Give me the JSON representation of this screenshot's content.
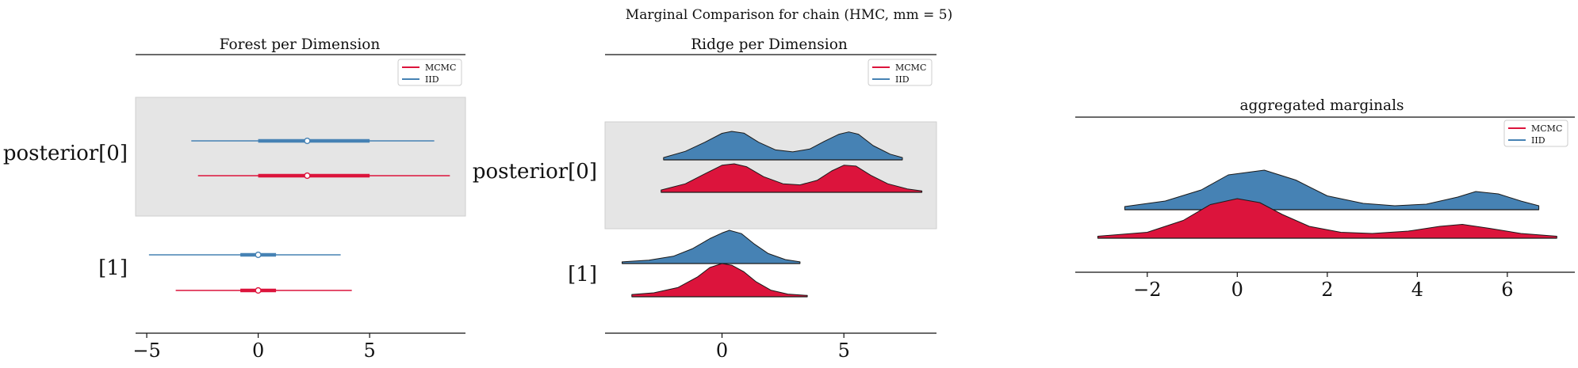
{
  "figure": {
    "suptitle": "Marginal Comparison for chain (HMC, mm = 5)"
  },
  "colors": {
    "MCMC": "#dc143c",
    "IID": "#4682b4",
    "band": "#e5e5e5",
    "outline": "#1a1a1a"
  },
  "chart_data": [
    {
      "type": "forest",
      "title": "Forest per Dimension",
      "legend": {
        "placement": "top-right",
        "entries": [
          "MCMC",
          "IID"
        ]
      },
      "xlim": [
        -5.5,
        9.3
      ],
      "xticks": [
        -5,
        0,
        5
      ],
      "xticklabels": [
        "−5",
        "0",
        "5"
      ],
      "rows": [
        {
          "label": "posterior[0]",
          "shaded": true,
          "series": [
            {
              "name": "IID",
              "hdi94": [
                -3.0,
                7.9
              ],
              "hdi50": [
                0.0,
                5.0
              ],
              "median": 2.2
            },
            {
              "name": "MCMC",
              "hdi94": [
                -2.7,
                8.6
              ],
              "hdi50": [
                0.0,
                5.0
              ],
              "median": 2.2
            }
          ]
        },
        {
          "label": "[1]",
          "shaded": false,
          "series": [
            {
              "name": "IID",
              "hdi94": [
                -4.9,
                3.7
              ],
              "hdi50": [
                -0.8,
                0.8
              ],
              "median": 0.0
            },
            {
              "name": "MCMC",
              "hdi94": [
                -3.7,
                4.2
              ],
              "hdi50": [
                -0.8,
                0.8
              ],
              "median": 0.0
            }
          ]
        }
      ]
    },
    {
      "type": "ridge",
      "title": "Ridge per Dimension",
      "legend": {
        "placement": "top-right",
        "entries": [
          "MCMC",
          "IID"
        ]
      },
      "xlim": [
        -4.8,
        8.8
      ],
      "xticks": [
        0,
        5
      ],
      "xticklabels": [
        "0",
        "5"
      ],
      "rows": [
        {
          "label": "posterior[0]",
          "shaded": true,
          "series": [
            {
              "name": "IID",
              "x": [
                -2.4,
                -1.5,
                -0.7,
                0.0,
                0.4,
                0.9,
                1.5,
                2.2,
                2.9,
                3.6,
                4.2,
                4.8,
                5.2,
                5.6,
                6.2,
                6.9,
                7.4
              ],
              "y": [
                0.08,
                0.3,
                0.62,
                0.93,
                1.0,
                0.94,
                0.62,
                0.35,
                0.28,
                0.38,
                0.65,
                0.9,
                0.98,
                0.9,
                0.5,
                0.2,
                0.08
              ]
            },
            {
              "name": "MCMC",
              "x": [
                -2.5,
                -1.5,
                -0.7,
                0.0,
                0.5,
                1.0,
                1.7,
                2.5,
                3.2,
                3.9,
                4.5,
                5.0,
                5.5,
                6.1,
                6.8,
                7.6,
                8.2
              ],
              "y": [
                0.08,
                0.3,
                0.65,
                0.95,
                1.0,
                0.9,
                0.55,
                0.3,
                0.26,
                0.42,
                0.75,
                0.95,
                0.92,
                0.6,
                0.3,
                0.12,
                0.05
              ]
            }
          ]
        },
        {
          "label": "[1]",
          "shaded": false,
          "series": [
            {
              "name": "IID",
              "x": [
                -4.1,
                -3.0,
                -2.0,
                -1.2,
                -0.5,
                0.0,
                0.3,
                0.8,
                1.3,
                1.9,
                2.6,
                3.2
              ],
              "y": [
                0.05,
                0.1,
                0.22,
                0.45,
                0.75,
                0.92,
                1.0,
                0.9,
                0.6,
                0.3,
                0.12,
                0.05
              ]
            },
            {
              "name": "MCMC",
              "x": [
                -3.7,
                -2.8,
                -1.8,
                -1.0,
                -0.5,
                0.0,
                0.4,
                0.9,
                1.4,
                2.0,
                2.7,
                3.5
              ],
              "y": [
                0.07,
                0.12,
                0.28,
                0.6,
                0.88,
                1.0,
                0.95,
                0.75,
                0.45,
                0.2,
                0.08,
                0.04
              ]
            }
          ]
        }
      ]
    },
    {
      "type": "ridge",
      "title": "aggregated marginals",
      "legend": {
        "placement": "top-right",
        "entries": [
          "MCMC",
          "IID"
        ]
      },
      "xlim": [
        -3.6,
        7.5
      ],
      "xticks": [
        -2,
        0,
        2,
        4,
        6
      ],
      "xticklabels": [
        "−2",
        "0",
        "2",
        "4",
        "6"
      ],
      "rows": [
        {
          "label": "",
          "shaded": false,
          "series": [
            {
              "name": "IID",
              "x": [
                -2.5,
                -1.6,
                -0.8,
                -0.2,
                0.6,
                1.3,
                2.0,
                2.8,
                3.5,
                4.2,
                4.9,
                5.3,
                5.8,
                6.3,
                6.7
              ],
              "y": [
                0.08,
                0.22,
                0.5,
                0.88,
                1.0,
                0.75,
                0.35,
                0.16,
                0.1,
                0.14,
                0.32,
                0.46,
                0.4,
                0.22,
                0.1
              ]
            },
            {
              "name": "MCMC",
              "x": [
                -3.1,
                -2.0,
                -1.2,
                -0.6,
                0.0,
                0.5,
                1.0,
                1.6,
                2.3,
                3.0,
                3.8,
                4.5,
                5.0,
                5.6,
                6.3,
                7.1
              ],
              "y": [
                0.05,
                0.15,
                0.45,
                0.85,
                1.0,
                0.9,
                0.6,
                0.3,
                0.15,
                0.12,
                0.18,
                0.3,
                0.35,
                0.25,
                0.12,
                0.05
              ]
            }
          ]
        }
      ]
    }
  ]
}
